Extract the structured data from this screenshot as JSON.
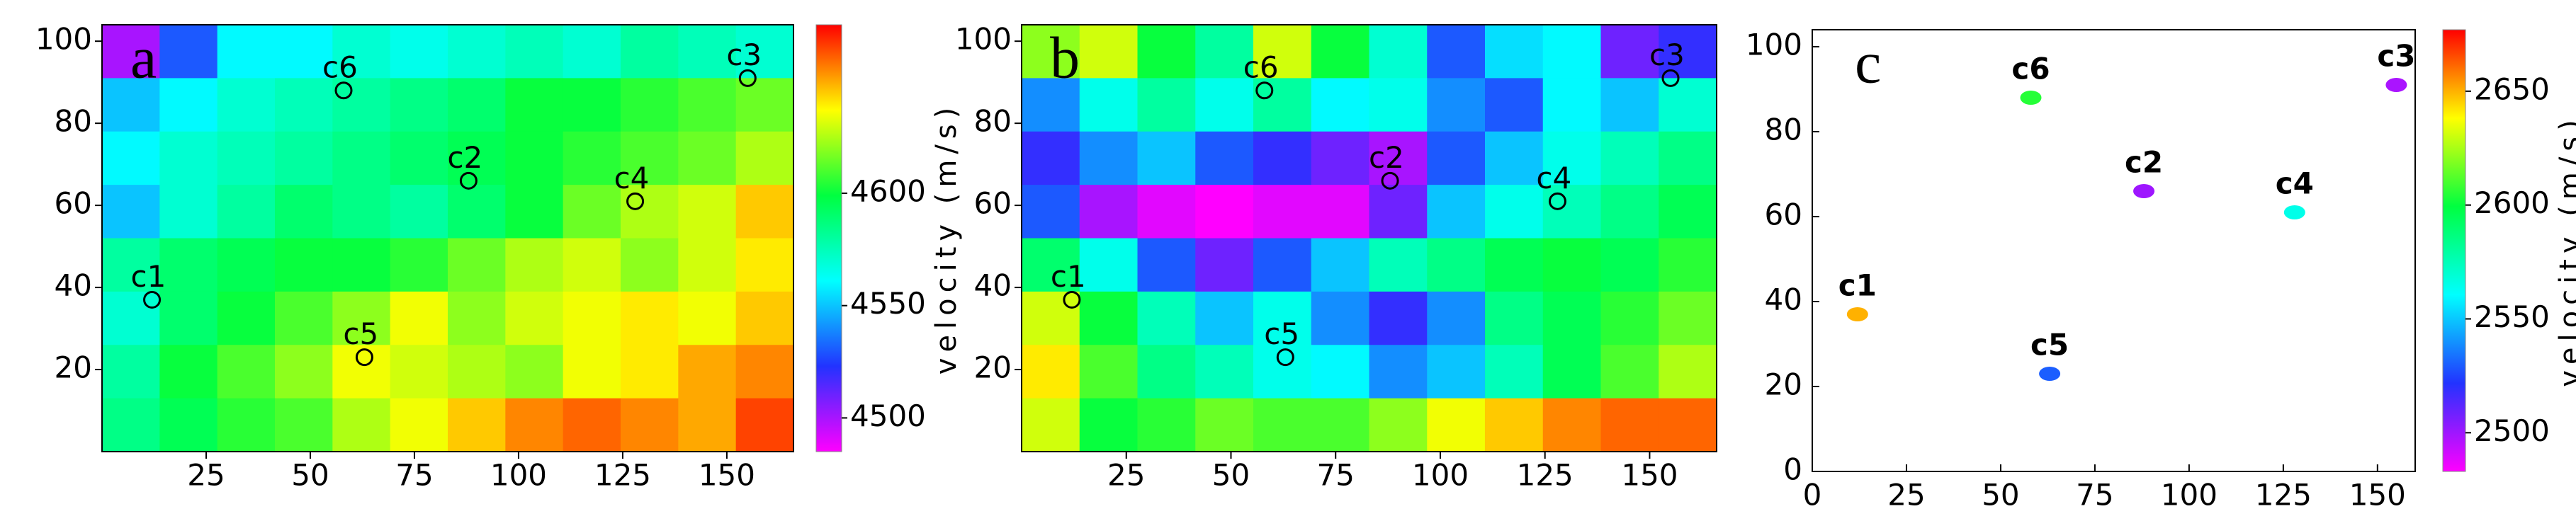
{
  "chart_data": [
    {
      "type": "heatmap",
      "panel_label": "a",
      "xlim": [
        0,
        166
      ],
      "ylim": [
        0,
        104
      ],
      "xticks": [
        25,
        50,
        75,
        100,
        125,
        150
      ],
      "yticks": [
        20,
        40,
        60,
        80,
        100
      ],
      "z": [
        [
          4500,
          4530,
          4560,
          4560,
          4570,
          4565,
          4570,
          4575,
          4570,
          4580,
          4575,
          4570
        ],
        [
          4550,
          4560,
          4570,
          4575,
          4580,
          4585,
          4590,
          4600,
          4600,
          4605,
          4610,
          4615
        ],
        [
          4560,
          4570,
          4575,
          4580,
          4585,
          4590,
          4595,
          4600,
          4605,
          4610,
          4615,
          4625
        ],
        [
          4550,
          4570,
          4580,
          4590,
          4585,
          4580,
          4590,
          4600,
          4615,
          4625,
          4630,
          4645
        ],
        [
          4580,
          4590,
          4595,
          4600,
          4600,
          4605,
          4615,
          4625,
          4630,
          4620,
          4630,
          4640
        ],
        [
          4570,
          4590,
          4600,
          4610,
          4620,
          4635,
          4620,
          4630,
          4635,
          4640,
          4635,
          4645
        ],
        [
          4580,
          4600,
          4610,
          4620,
          4635,
          4630,
          4625,
          4620,
          4635,
          4640,
          4650,
          4655
        ],
        [
          4585,
          4595,
          4605,
          4610,
          4625,
          4635,
          4645,
          4655,
          4660,
          4655,
          4650,
          4665
        ]
      ],
      "colormap": [
        "#ff00ff",
        "#2233ff",
        "#00ffff",
        "#00ff40",
        "#ffff00",
        "#ff0000"
      ],
      "clim": [
        4485,
        4675
      ],
      "cticks": [
        4500,
        4550,
        4600
      ],
      "colorbar_label": "velocity (m/s)"
    },
    {
      "type": "heatmap",
      "panel_label": "b",
      "xlim": [
        0,
        166
      ],
      "ylim": [
        0,
        104
      ],
      "xticks": [
        25,
        50,
        75,
        100,
        125,
        150
      ],
      "yticks": [
        20,
        40,
        60,
        80,
        100
      ],
      "z": [
        [
          4620,
          4630,
          4600,
          4580,
          4630,
          4600,
          4570,
          4530,
          4555,
          4560,
          4510,
          4520
        ],
        [
          4540,
          4565,
          4580,
          4565,
          4580,
          4560,
          4565,
          4540,
          4530,
          4560,
          4550,
          4570
        ],
        [
          4520,
          4540,
          4550,
          4530,
          4520,
          4510,
          4500,
          4530,
          4550,
          4565,
          4575,
          4585
        ],
        [
          4530,
          4500,
          4490,
          4480,
          4490,
          4490,
          4510,
          4550,
          4565,
          4575,
          4585,
          4595
        ],
        [
          4590,
          4565,
          4530,
          4510,
          4530,
          4550,
          4575,
          4585,
          4595,
          4600,
          4595,
          4605
        ],
        [
          4630,
          4600,
          4575,
          4550,
          4565,
          4540,
          4520,
          4540,
          4585,
          4595,
          4605,
          4615
        ],
        [
          4640,
          4610,
          4585,
          4575,
          4565,
          4560,
          4540,
          4550,
          4575,
          4595,
          4610,
          4625
        ],
        [
          4630,
          4600,
          4605,
          4615,
          4610,
          4610,
          4620,
          4635,
          4645,
          4655,
          4660,
          4660
        ]
      ],
      "colormap": [
        "#ff00ff",
        "#2233ff",
        "#00ffff",
        "#00ff40",
        "#ffff00",
        "#ff0000"
      ],
      "clim": [
        4485,
        4675
      ]
    },
    {
      "type": "scatter",
      "panel_label": "c",
      "xlim": [
        0,
        160
      ],
      "ylim": [
        0,
        104
      ],
      "xticks": [
        0,
        25,
        50,
        75,
        100,
        125,
        150
      ],
      "yticks": [
        0,
        20,
        40,
        60,
        80,
        100
      ],
      "labels": [
        "c1",
        "c2",
        "c3",
        "c4",
        "c5",
        "c6"
      ],
      "x": [
        12,
        88,
        155,
        128,
        63,
        58
      ],
      "values": [
        37,
        66,
        91,
        61,
        23,
        88
      ],
      "velocity": [
        2650,
        2500,
        2498,
        2565,
        2530,
        2605
      ],
      "colormap": [
        "#ff00ff",
        "#2233ff",
        "#00ffff",
        "#00ff40",
        "#ffff00",
        "#ff0000"
      ],
      "clim": [
        2483,
        2677
      ],
      "cticks": [
        2500,
        2550,
        2600,
        2650
      ],
      "colorbar_label": "velocity (m/s)"
    }
  ]
}
